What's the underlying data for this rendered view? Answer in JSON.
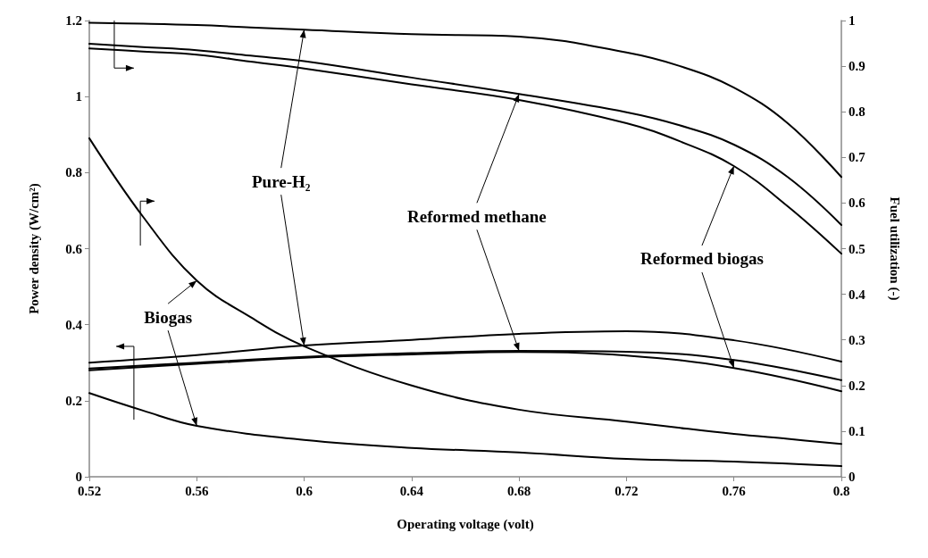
{
  "chart_data": {
    "type": "line",
    "xlabel": "Operating voltage (volt)",
    "ylabel": "Power density (W/cm²)",
    "y2label": "Fuel utilization (-)",
    "xlim": [
      0.52,
      0.8
    ],
    "xticks": [
      0.52,
      0.56,
      0.6,
      0.64,
      0.68,
      0.72,
      0.76,
      0.8
    ],
    "ylim": [
      0,
      1.2
    ],
    "yticks": [
      0,
      0.2,
      0.4,
      0.6,
      0.8,
      1,
      1.2
    ],
    "y2lim": [
      0,
      1
    ],
    "y2ticks": [
      0,
      0.1,
      0.2,
      0.3,
      0.4,
      0.5,
      0.6,
      0.7,
      0.8,
      0.9,
      1
    ],
    "grid": false,
    "marker": "none",
    "line_style": "solid",
    "annotations": [
      {
        "text": "Pure-H₂",
        "x": 0.6,
        "y": 0.345
      },
      {
        "text": "Reformed methane",
        "x": 0.68,
        "y": 0.331
      },
      {
        "text": "Reformed biogas",
        "x": 0.76,
        "y": 0.286
      },
      {
        "text": "Biogas",
        "x": 0.56,
        "y": 0.134
      }
    ],
    "series": [
      {
        "color": "#000000",
        "x": [
          0.52,
          0.56,
          0.6,
          0.64,
          0.68,
          0.72,
          0.76,
          0.8
        ],
        "values": [
          0.3,
          0.32,
          0.345,
          0.36,
          0.376,
          0.383,
          0.359,
          0.303
        ]
      },
      {
        "color": "#000000",
        "x": [
          0.52,
          0.56,
          0.6,
          0.64,
          0.68,
          0.72,
          0.76,
          0.8
        ],
        "values": [
          0.285,
          0.3,
          0.315,
          0.325,
          0.331,
          0.329,
          0.307,
          0.254
        ]
      },
      {
        "color": "#000000",
        "x": [
          0.52,
          0.56,
          0.6,
          0.64,
          0.68,
          0.72,
          0.76,
          0.8
        ],
        "values": [
          0.28,
          0.297,
          0.313,
          0.322,
          0.328,
          0.319,
          0.286,
          0.225
        ]
      },
      {
        "color": "#000000",
        "x": [
          0.52,
          0.54,
          0.56,
          0.6,
          0.64,
          0.68,
          0.72,
          0.76,
          0.8
        ],
        "values": [
          0.22,
          0.174,
          0.134,
          0.097,
          0.076,
          0.064,
          0.047,
          0.04,
          0.028
        ]
      },
      {
        "color": "#000000",
        "axis": "y2",
        "x": [
          0.52,
          0.54,
          0.56,
          0.58,
          0.6,
          0.64,
          0.68,
          0.72,
          0.74,
          0.76,
          0.78,
          0.8
        ],
        "values": [
          0.995,
          0.993,
          0.99,
          0.985,
          0.98,
          0.97,
          0.965,
          0.93,
          0.9,
          0.853,
          0.775,
          0.657
        ]
      },
      {
        "color": "#000000",
        "axis": "y2",
        "x": [
          0.52,
          0.54,
          0.56,
          0.58,
          0.6,
          0.64,
          0.68,
          0.72,
          0.74,
          0.76,
          0.78,
          0.8
        ],
        "values": [
          0.949,
          0.942,
          0.935,
          0.923,
          0.911,
          0.875,
          0.839,
          0.799,
          0.77,
          0.728,
          0.657,
          0.552
        ]
      },
      {
        "color": "#000000",
        "axis": "y2",
        "x": [
          0.52,
          0.54,
          0.56,
          0.58,
          0.6,
          0.64,
          0.68,
          0.72,
          0.74,
          0.76,
          0.78,
          0.8
        ],
        "values": [
          0.939,
          0.932,
          0.925,
          0.91,
          0.895,
          0.86,
          0.826,
          0.775,
          0.735,
          0.681,
          0.593,
          0.489
        ]
      },
      {
        "color": "#000000",
        "axis": "y2",
        "x": [
          0.52,
          0.54,
          0.56,
          0.58,
          0.6,
          0.64,
          0.68,
          0.72,
          0.74,
          0.76,
          0.78,
          0.8
        ],
        "values": [
          0.742,
          0.57,
          0.43,
          0.35,
          0.286,
          0.2,
          0.147,
          0.121,
          0.107,
          0.094,
          0.083,
          0.072
        ]
      }
    ]
  }
}
